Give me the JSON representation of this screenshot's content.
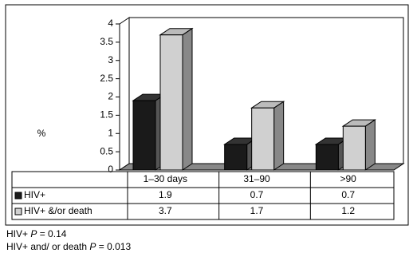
{
  "chart_data": {
    "type": "bar3d",
    "y_label": "%",
    "categories": [
      "1–30 days",
      "31–90",
      ">90"
    ],
    "series": [
      {
        "name": "HIV+",
        "color": "#1a1a1a",
        "values": [
          1.9,
          0.7,
          0.7
        ]
      },
      {
        "name": "HIV+ &/or death",
        "color": "#d0d0d0",
        "values": [
          3.7,
          1.7,
          1.2
        ]
      }
    ],
    "ylim": [
      0,
      4
    ],
    "yticks": [
      0,
      0.5,
      1,
      1.5,
      2,
      2.5,
      3,
      3.5,
      4
    ]
  },
  "notes": [
    {
      "lead": "HIV+",
      "p": "P",
      "tail": "= 0.14"
    },
    {
      "lead": "HIV+ and/ or death",
      "p": "P",
      "tail": "= 0.013"
    }
  ]
}
